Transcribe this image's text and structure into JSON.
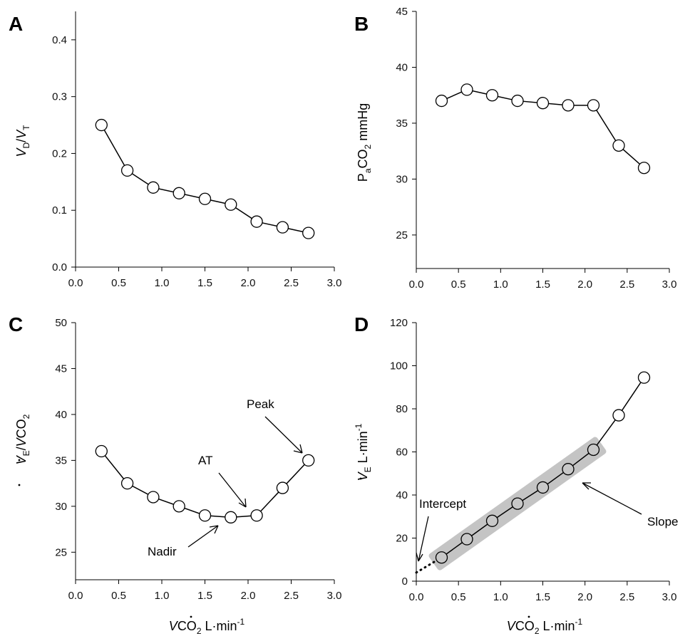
{
  "chart_data": [
    {
      "id": "A",
      "type": "line",
      "panel_label": "A",
      "ylabel": "V_D/V_T",
      "xlabel": "",
      "xlim": [
        0,
        3.0
      ],
      "ylim": [
        0,
        0.45
      ],
      "xticks": [
        "0.0",
        "0.5",
        "1.0",
        "1.5",
        "2.0",
        "2.5",
        "3.0"
      ],
      "yticks": [
        "0.0",
        "0.1",
        "0.2",
        "0.3",
        "0.4"
      ],
      "x": [
        0.3,
        0.6,
        0.9,
        1.2,
        1.5,
        1.8,
        2.1,
        2.4,
        2.7
      ],
      "y": [
        0.25,
        0.17,
        0.14,
        0.13,
        0.12,
        0.11,
        0.08,
        0.07,
        0.06
      ]
    },
    {
      "id": "B",
      "type": "line",
      "panel_label": "B",
      "ylabel": "PaCO2 mmHg",
      "xlabel": "",
      "xlim": [
        0,
        3.0
      ],
      "ylim": [
        22,
        45
      ],
      "xticks": [
        "0.0",
        "0.5",
        "1.0",
        "1.5",
        "2.0",
        "2.5",
        "3.0"
      ],
      "yticks": [
        "25",
        "30",
        "35",
        "40",
        "45"
      ],
      "x": [
        0.3,
        0.6,
        0.9,
        1.2,
        1.5,
        1.8,
        2.1,
        2.4,
        2.7
      ],
      "y": [
        37.0,
        38.0,
        37.5,
        37.0,
        36.8,
        36.6,
        36.6,
        33.0,
        31.0
      ]
    },
    {
      "id": "C",
      "type": "line",
      "panel_label": "C",
      "ylabel": "VE/VCO2",
      "xlabel": "VCO2 L·min-1",
      "xlim": [
        0,
        3.0
      ],
      "ylim": [
        22,
        50
      ],
      "xticks": [
        "0.0",
        "0.5",
        "1.0",
        "1.5",
        "2.0",
        "2.5",
        "3.0"
      ],
      "yticks": [
        "25",
        "30",
        "35",
        "40",
        "45",
        "50"
      ],
      "x": [
        0.3,
        0.6,
        0.9,
        1.2,
        1.5,
        1.8,
        2.1,
        2.4,
        2.7
      ],
      "y": [
        36.0,
        32.5,
        31.0,
        30.0,
        29.0,
        28.8,
        29.0,
        32.0,
        35.0
      ],
      "annotations": [
        "Peak",
        "AT",
        "Nadir"
      ]
    },
    {
      "id": "D",
      "type": "line",
      "panel_label": "D",
      "ylabel": "VE L·min-1",
      "xlabel": "VCO2 L·min-1",
      "xlim": [
        0,
        3.0
      ],
      "ylim": [
        0,
        120
      ],
      "xticks": [
        "0.0",
        "0.5",
        "1.0",
        "1.5",
        "2.0",
        "2.5",
        "3.0"
      ],
      "yticks": [
        "0",
        "20",
        "40",
        "60",
        "80",
        "100",
        "120"
      ],
      "x": [
        0.3,
        0.6,
        0.9,
        1.2,
        1.5,
        1.8,
        2.1,
        2.4,
        2.7
      ],
      "y": [
        11,
        19.5,
        28,
        36,
        43.5,
        52,
        61,
        77,
        94.5
      ],
      "shaded_points": 7,
      "extrapolation_intercept": 4,
      "annotations": [
        "Intercept",
        "Slope"
      ]
    }
  ]
}
